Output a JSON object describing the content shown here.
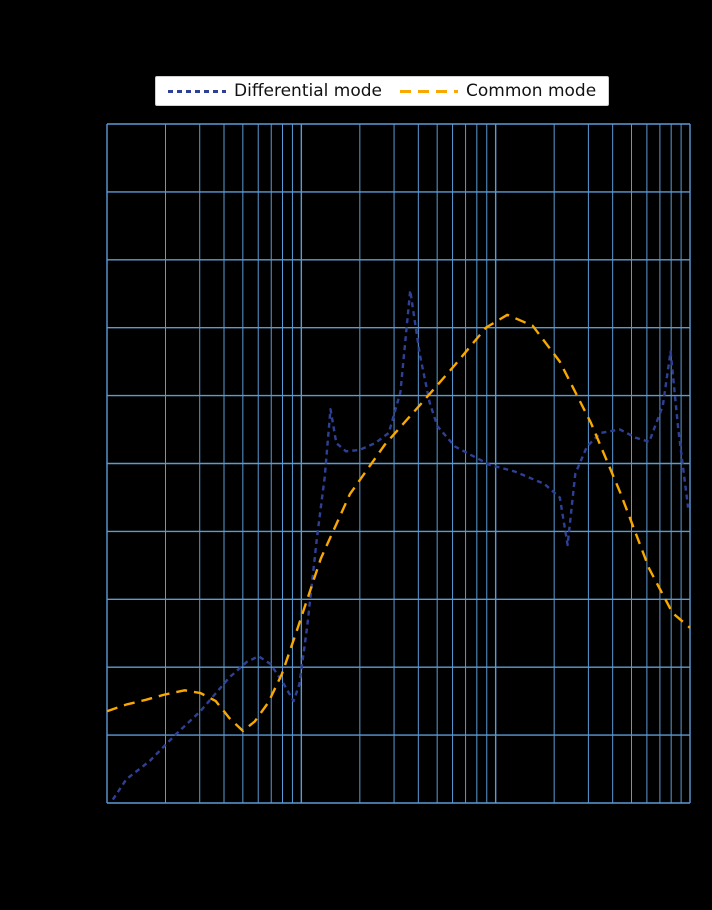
{
  "page": {
    "background": "#000000"
  },
  "legend": {
    "background": "#ffffff",
    "text_color": "#111111",
    "items": [
      {
        "label": "Differential mode",
        "color": "#2e4096",
        "dash": [
          5,
          4
        ]
      },
      {
        "label": "Common mode",
        "color": "#f9a800",
        "dash": [
          11,
          7
        ]
      }
    ]
  },
  "chart_data": {
    "type": "line",
    "title": "",
    "xlabel": "",
    "ylabel": "",
    "x_axis": {
      "scale": "log",
      "decades": 3,
      "tick_labels_visible": false,
      "unit": "decades from left edge of plot"
    },
    "y_axis": {
      "divisions": 10,
      "tick_labels_visible": false,
      "unit": "grid divisions from bottom of plot"
    },
    "grid": {
      "color": "#5b9bd5",
      "minor_per_decade": [
        2,
        3,
        4,
        5,
        6,
        7,
        8,
        9
      ],
      "on": true
    },
    "legend_position": "top-center-outside",
    "series": [
      {
        "name": "Differential mode",
        "color": "#2e4096",
        "dash": [
          5,
          4
        ],
        "points": [
          [
            0.03,
            0.05
          ],
          [
            0.1,
            0.35
          ],
          [
            0.22,
            0.62
          ],
          [
            0.35,
            1.0
          ],
          [
            0.48,
            1.35
          ],
          [
            0.63,
            1.85
          ],
          [
            0.72,
            2.08
          ],
          [
            0.78,
            2.16
          ],
          [
            0.84,
            2.05
          ],
          [
            0.9,
            1.8
          ],
          [
            0.96,
            1.5
          ],
          [
            0.99,
            1.75
          ],
          [
            1.03,
            2.6
          ],
          [
            1.08,
            3.9
          ],
          [
            1.12,
            4.8
          ],
          [
            1.15,
            5.8
          ],
          [
            1.18,
            5.3
          ],
          [
            1.23,
            5.18
          ],
          [
            1.3,
            5.2
          ],
          [
            1.38,
            5.3
          ],
          [
            1.45,
            5.45
          ],
          [
            1.51,
            6.05
          ],
          [
            1.56,
            7.55
          ],
          [
            1.61,
            6.6
          ],
          [
            1.66,
            5.9
          ],
          [
            1.7,
            5.55
          ],
          [
            1.79,
            5.25
          ],
          [
            1.97,
            4.98
          ],
          [
            2.1,
            4.88
          ],
          [
            2.25,
            4.7
          ],
          [
            2.33,
            4.5
          ],
          [
            2.37,
            3.8
          ],
          [
            2.41,
            4.85
          ],
          [
            2.47,
            5.25
          ],
          [
            2.54,
            5.45
          ],
          [
            2.64,
            5.5
          ],
          [
            2.72,
            5.38
          ],
          [
            2.79,
            5.32
          ],
          [
            2.86,
            5.85
          ],
          [
            2.9,
            6.65
          ],
          [
            2.94,
            5.5
          ],
          [
            2.99,
            4.35
          ]
        ]
      },
      {
        "name": "Common mode",
        "color": "#f9a800",
        "dash": [
          11,
          7
        ],
        "points": [
          [
            0.0,
            1.35
          ],
          [
            0.1,
            1.45
          ],
          [
            0.2,
            1.52
          ],
          [
            0.3,
            1.6
          ],
          [
            0.4,
            1.66
          ],
          [
            0.48,
            1.62
          ],
          [
            0.56,
            1.5
          ],
          [
            0.63,
            1.25
          ],
          [
            0.7,
            1.06
          ],
          [
            0.76,
            1.2
          ],
          [
            0.83,
            1.48
          ],
          [
            0.9,
            1.9
          ],
          [
            0.97,
            2.48
          ],
          [
            1.1,
            3.6
          ],
          [
            1.25,
            4.55
          ],
          [
            1.43,
            5.28
          ],
          [
            1.61,
            5.86
          ],
          [
            1.79,
            6.45
          ],
          [
            1.95,
            7.0
          ],
          [
            2.06,
            7.19
          ],
          [
            2.19,
            7.03
          ],
          [
            2.33,
            6.5
          ],
          [
            2.49,
            5.6
          ],
          [
            2.64,
            4.58
          ],
          [
            2.79,
            3.45
          ],
          [
            2.91,
            2.8
          ],
          [
            3.0,
            2.58
          ]
        ]
      }
    ]
  }
}
